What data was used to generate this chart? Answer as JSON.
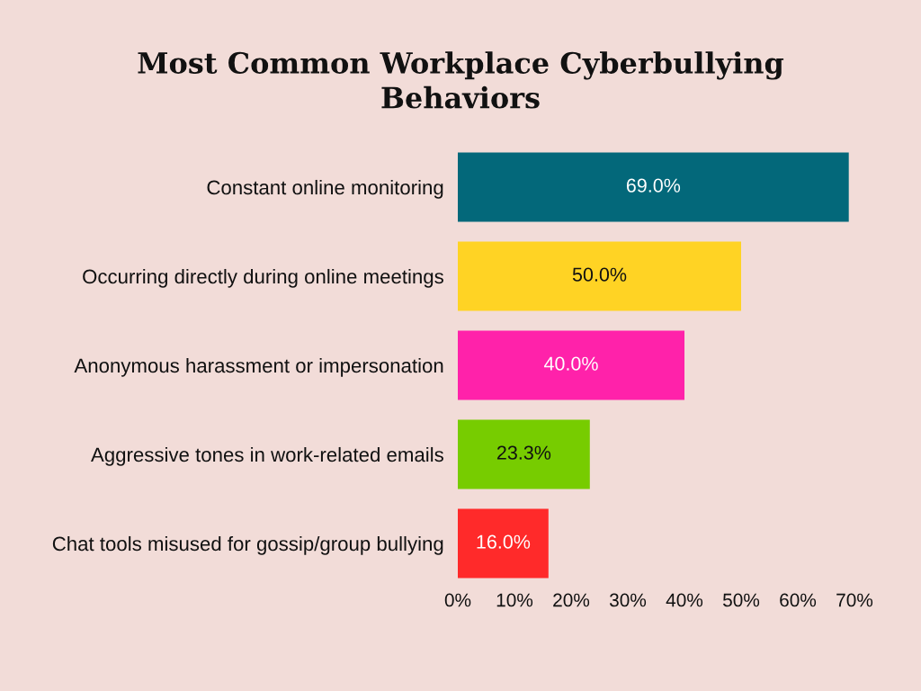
{
  "chart_data": {
    "type": "bar",
    "orientation": "horizontal",
    "title": "Most Common Workplace Cyberbullying\nBehaviors",
    "categories": [
      "Constant online monitoring",
      "Occurring directly during online meetings",
      "Anonymous harassment or impersonation",
      "Aggressive tones in work-related emails",
      "Chat tools misused for gossip/group bullying"
    ],
    "values": [
      69.0,
      50.0,
      40.0,
      23.3,
      16.0
    ],
    "colors": [
      "#03687a",
      "#ffd324",
      "#ff22aa",
      "#77cc00",
      "#ff2a2a"
    ],
    "value_labels": [
      "69.0%",
      "50.0%",
      "40.0%",
      "23.3%",
      "16.0%"
    ],
    "xlim": [
      0,
      70
    ],
    "xticks": [
      {
        "value": 0,
        "label": "0%"
      },
      {
        "value": 10,
        "label": "10%"
      },
      {
        "value": 20,
        "label": "20%"
      },
      {
        "value": 30,
        "label": "30%"
      },
      {
        "value": 40,
        "label": "40%"
      },
      {
        "value": 50,
        "label": "50%"
      },
      {
        "value": 60,
        "label": "60%"
      },
      {
        "value": 70,
        "label": "70%"
      }
    ]
  }
}
